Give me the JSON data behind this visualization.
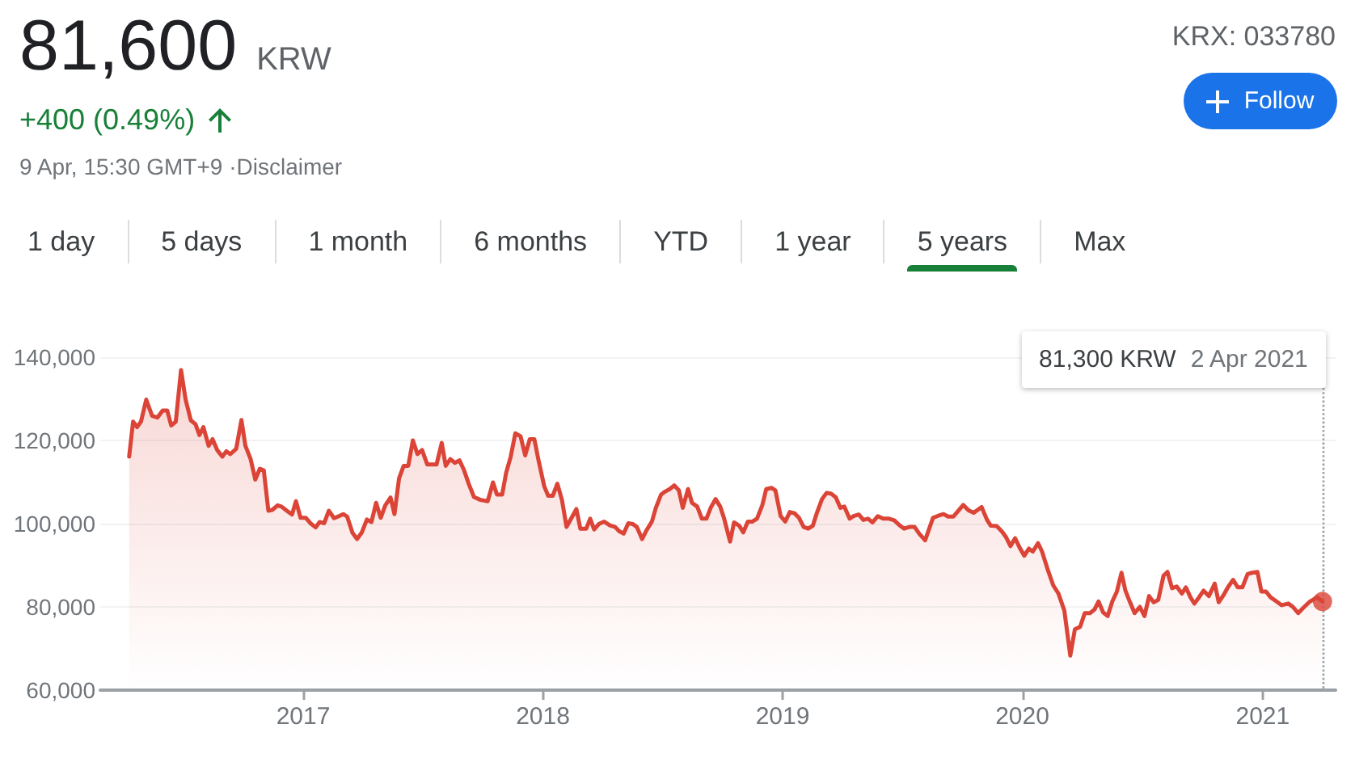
{
  "chart_data": {
    "type": "area",
    "title": "81,600",
    "annotations": [
      "KRW",
      "+400 (0.49%)",
      "9 Apr, 15:30 GMT+9 ·Disclaimer",
      "KRX: 033780",
      "Follow",
      "1 day",
      "5 days",
      "1 month",
      "6 months",
      "YTD",
      "1 year",
      "5 years",
      "Max",
      "81,300 KRW",
      "2 Apr 2021"
    ],
    "x": [
      "2016-04-11",
      "2016-04-17",
      "2016-04-23",
      "2016-04-29",
      "2016-05-07",
      "2016-05-16",
      "2016-05-24",
      "2016-06-01",
      "2016-06-08",
      "2016-06-14",
      "2016-06-21",
      "2016-06-29",
      "2016-07-06",
      "2016-07-14",
      "2016-07-21",
      "2016-07-27",
      "2016-08-02",
      "2016-08-10",
      "2016-08-16",
      "2016-08-23",
      "2016-08-31",
      "2016-09-06",
      "2016-09-12",
      "2016-09-21",
      "2016-09-29",
      "2016-10-05",
      "2016-10-13",
      "2016-10-20",
      "2016-10-27",
      "2016-11-02",
      "2016-11-09",
      "2016-11-15",
      "2016-11-23",
      "2016-11-29",
      "2016-12-07",
      "2016-12-15",
      "2016-12-21",
      "2016-12-28",
      "2017-01-05",
      "2017-01-12",
      "2017-01-20",
      "2017-01-26",
      "2017-02-02",
      "2017-02-09",
      "2017-02-17",
      "2017-02-23",
      "2017-03-03",
      "2017-03-09",
      "2017-03-17",
      "2017-03-24",
      "2017-03-31",
      "2017-04-08",
      "2017-04-15",
      "2017-04-22",
      "2017-04-29",
      "2017-05-06",
      "2017-05-14",
      "2017-05-20",
      "2017-05-27",
      "2017-06-03",
      "2017-06-10",
      "2017-06-17",
      "2017-06-24",
      "2017-07-01",
      "2017-07-09",
      "2017-07-16",
      "2017-07-23",
      "2017-07-31",
      "2017-08-06",
      "2017-08-13",
      "2017-08-20",
      "2017-08-27",
      "2017-09-03",
      "2017-09-10",
      "2017-09-18",
      "2017-09-28",
      "2017-10-09",
      "2017-10-17",
      "2017-10-23",
      "2017-10-31",
      "2017-11-06",
      "2017-11-13",
      "2017-11-20",
      "2017-11-28",
      "2017-12-05",
      "2017-12-12",
      "2017-12-19",
      "2017-12-25",
      "2018-01-03",
      "2018-01-09",
      "2018-01-16",
      "2018-01-23",
      "2018-01-30",
      "2018-02-06",
      "2018-02-13",
      "2018-02-21",
      "2018-02-27",
      "2018-03-08",
      "2018-03-14",
      "2018-03-20",
      "2018-03-27",
      "2018-04-04",
      "2018-04-13",
      "2018-04-21",
      "2018-04-27",
      "2018-05-04",
      "2018-05-11",
      "2018-05-18",
      "2018-05-24",
      "2018-06-01",
      "2018-06-07",
      "2018-06-16",
      "2018-06-22",
      "2018-06-30",
      "2018-07-06",
      "2018-07-13",
      "2018-07-20",
      "2018-07-27",
      "2018-08-02",
      "2018-08-10",
      "2018-08-16",
      "2018-08-24",
      "2018-08-31",
      "2018-09-07",
      "2018-09-14",
      "2018-09-21",
      "2018-09-28",
      "2018-10-04",
      "2018-10-13",
      "2018-10-19",
      "2018-10-27",
      "2018-11-02",
      "2018-11-09",
      "2018-11-16",
      "2018-11-23",
      "2018-12-01",
      "2018-12-07",
      "2018-12-15",
      "2018-12-21",
      "2018-12-29",
      "2019-01-05",
      "2019-01-12",
      "2019-01-19",
      "2019-01-26",
      "2019-02-02",
      "2019-02-09",
      "2019-02-16",
      "2019-02-22",
      "2019-03-02",
      "2019-03-09",
      "2019-03-16",
      "2019-03-23",
      "2019-03-30",
      "2019-04-05",
      "2019-04-13",
      "2019-04-19",
      "2019-04-27",
      "2019-05-04",
      "2019-05-11",
      "2019-05-18",
      "2019-05-26",
      "2019-06-03",
      "2019-06-12",
      "2019-06-20",
      "2019-06-28",
      "2019-07-05",
      "2019-07-13",
      "2019-07-21",
      "2019-07-28",
      "2019-08-06",
      "2019-08-18",
      "2019-08-26",
      "2019-09-03",
      "2019-09-10",
      "2019-09-18",
      "2019-09-26",
      "2019-10-03",
      "2019-10-11",
      "2019-10-19",
      "2019-10-31",
      "2019-11-08",
      "2019-11-14",
      "2019-11-23",
      "2019-12-01",
      "2019-12-07",
      "2019-12-14",
      "2019-12-21",
      "2019-12-28",
      "2020-01-04",
      "2020-01-11",
      "2020-01-17",
      "2020-01-25",
      "2020-01-31",
      "2020-02-09",
      "2020-02-17",
      "2020-02-25",
      "2020-03-05",
      "2020-03-14",
      "2020-03-21",
      "2020-03-29",
      "2020-04-05",
      "2020-04-13",
      "2020-04-20",
      "2020-04-26",
      "2020-05-03",
      "2020-05-10",
      "2020-05-17",
      "2020-05-24",
      "2020-05-31",
      "2020-06-06",
      "2020-06-13",
      "2020-06-20",
      "2020-06-28",
      "2020-07-05",
      "2020-07-12",
      "2020-07-19",
      "2020-07-26",
      "2020-08-03",
      "2020-08-09",
      "2020-08-16",
      "2020-08-23",
      "2020-08-31",
      "2020-09-06",
      "2020-09-13",
      "2020-09-19",
      "2020-09-26",
      "2020-10-03",
      "2020-10-11",
      "2020-10-20",
      "2020-10-26",
      "2020-11-03",
      "2020-11-09",
      "2020-11-17",
      "2020-11-24",
      "2020-12-01",
      "2020-12-09",
      "2020-12-16",
      "2020-12-24",
      "2020-12-30",
      "2021-01-06",
      "2021-01-13",
      "2021-01-22",
      "2021-01-30",
      "2021-02-09",
      "2021-02-16",
      "2021-02-24",
      "2021-03-04",
      "2021-03-14",
      "2021-03-25",
      "2021-04-02"
    ],
    "series": [
      {
        "color": "#db4437",
        "values": [
          116100,
          124500,
          123200,
          124500,
          129800,
          125900,
          125500,
          127200,
          127200,
          123600,
          124500,
          136900,
          129800,
          124800,
          123900,
          121300,
          123200,
          118700,
          120300,
          117700,
          116100,
          117400,
          116700,
          118000,
          124900,
          118700,
          115500,
          110600,
          113200,
          112800,
          103100,
          103300,
          104400,
          104100,
          103100,
          102200,
          105400,
          101400,
          101400,
          100100,
          99100,
          100400,
          100100,
          103100,
          101300,
          101700,
          102300,
          101700,
          97800,
          96300,
          97800,
          101000,
          100400,
          105000,
          101400,
          104400,
          106300,
          102300,
          110900,
          113900,
          113900,
          120000,
          116700,
          117700,
          114200,
          114200,
          114200,
          119400,
          113900,
          115500,
          114600,
          115200,
          112800,
          109600,
          106400,
          105700,
          105400,
          109900,
          107000,
          107000,
          112200,
          116100,
          121700,
          121000,
          116400,
          120300,
          120300,
          115500,
          109000,
          106700,
          106700,
          109600,
          105700,
          99200,
          101200,
          103500,
          98800,
          98800,
          101200,
          98600,
          99900,
          100500,
          99600,
          99200,
          98200,
          97600,
          100100,
          99900,
          99200,
          96300,
          98200,
          100500,
          103800,
          107000,
          107700,
          108300,
          109200,
          108000,
          103800,
          108300,
          105000,
          104100,
          101200,
          101200,
          104000,
          105900,
          104100,
          101200,
          95700,
          100300,
          99500,
          97900,
          100500,
          100500,
          101200,
          104400,
          108300,
          108600,
          108000,
          101800,
          100500,
          102800,
          102500,
          101400,
          99200,
          98800,
          99500,
          102500,
          105900,
          107400,
          107200,
          106300,
          103800,
          104100,
          101200,
          101800,
          102200,
          100900,
          101200,
          100300,
          101800,
          101200,
          101200,
          100800,
          99600,
          98800,
          99200,
          99200,
          97600,
          96000,
          101400,
          101900,
          102300,
          101700,
          101700,
          103200,
          104500,
          103200,
          102600,
          104000,
          101000,
          99500,
          99400,
          98100,
          96800,
          94600,
          96500,
          94200,
          92300,
          94000,
          93300,
          95300,
          93300,
          88800,
          85200,
          83200,
          79100,
          68300,
          74600,
          75200,
          78500,
          78500,
          79400,
          81300,
          78700,
          77800,
          81300,
          83700,
          88200,
          83900,
          81100,
          78500,
          80000,
          77800,
          82600,
          81100,
          81700,
          87500,
          88400,
          84500,
          84900,
          83200,
          84700,
          82300,
          80800,
          82300,
          83900,
          82600,
          85600,
          81100,
          83000,
          84700,
          86500,
          84700,
          84700,
          87900,
          88200,
          88400,
          83700,
          83700,
          82300,
          81300,
          80400,
          80800,
          80000,
          78500,
          79800,
          81300,
          82300,
          81300
        ]
      },
      {
        "type": "scatter",
        "marker": "circle",
        "color": "#db4437",
        "x": [
          "2021-04-02"
        ],
        "values": [
          81300
        ]
      }
    ],
    "xlim": [
      "2016-02-27",
      "2021-04-22"
    ],
    "xticks": [
      "2017",
      "2018",
      "2019",
      "2020",
      "2021"
    ],
    "ylim": [
      60000,
      140000
    ],
    "yticks": [
      {
        "value": 60000,
        "label": "60,000"
      },
      {
        "value": 80000,
        "label": "80,000"
      },
      {
        "value": 100000,
        "label": "100,000"
      },
      {
        "value": 120000,
        "label": "120,000"
      },
      {
        "value": 140000,
        "label": "140,000"
      }
    ],
    "grid": "y",
    "marker": "none",
    "ref_lines": [
      {
        "axis": "x",
        "value": "2021-04-02",
        "color": "#9aa0a6",
        "line_style": "dotted"
      }
    ]
  }
}
